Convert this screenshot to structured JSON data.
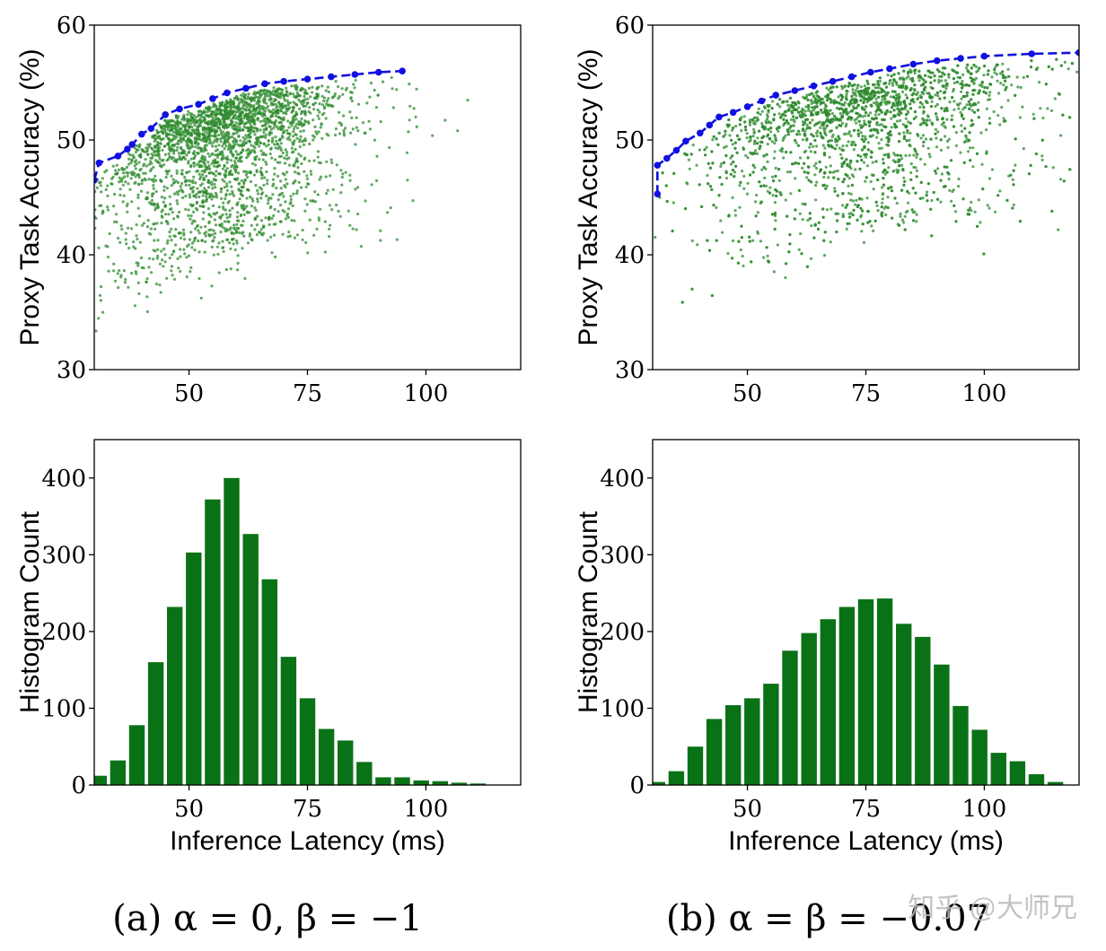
{
  "captions": {
    "a": "(a) α = 0, β = −1",
    "b": "(b) α = β = −0.07"
  },
  "watermark": "知乎 @大师兄",
  "colors": {
    "scatter": "#2e8b2e",
    "frontier": "#1010e0",
    "bars": "#0a7216",
    "axis": "#000000"
  },
  "chart_data": [
    {
      "panel": "a-scatter",
      "type": "scatter",
      "ylabel": "Proxy Task Accuracy (%)",
      "xlabel": "",
      "xlim": [
        30,
        120
      ],
      "ylim": [
        30,
        60
      ],
      "xticks": [
        "50",
        "75",
        "100"
      ],
      "yticks": [
        "30",
        "40",
        "50",
        "60"
      ],
      "pareto_frontier": {
        "style": "dashed line with markers",
        "x": [
          30,
          31,
          35,
          37,
          38,
          40,
          42,
          45,
          48,
          52,
          55,
          58,
          62,
          66,
          70,
          75,
          80,
          85,
          90,
          95
        ],
        "y": [
          46.5,
          48.0,
          48.6,
          49.2,
          49.6,
          50.5,
          51.0,
          52.2,
          52.7,
          53.1,
          53.6,
          54.1,
          54.5,
          54.9,
          55.1,
          55.3,
          55.5,
          55.7,
          55.9,
          56.0
        ]
      },
      "cloud": {
        "center_x": 57,
        "spread_x": 12,
        "min_x": 30,
        "max_x": 112,
        "frontier_slack": 0.4
      }
    },
    {
      "panel": "b-scatter",
      "type": "scatter",
      "ylabel": "Proxy Task Accuracy (%)",
      "xlabel": "",
      "xlim": [
        30,
        120
      ],
      "ylim": [
        30,
        60
      ],
      "xticks": [
        "50",
        "75",
        "100"
      ],
      "yticks": [
        "30",
        "40",
        "50",
        "60"
      ],
      "pareto_frontier": {
        "style": "dashed line with markers",
        "x": [
          31,
          31,
          33,
          35,
          37,
          40,
          42,
          44,
          47,
          50,
          53,
          56,
          60,
          64,
          68,
          72,
          76,
          80,
          85,
          90,
          95,
          100,
          110,
          120
        ],
        "y": [
          45.3,
          47.8,
          48.4,
          49.1,
          49.9,
          50.6,
          51.3,
          52.0,
          52.4,
          52.9,
          53.4,
          53.9,
          54.3,
          54.7,
          55.1,
          55.5,
          55.9,
          56.2,
          56.6,
          56.9,
          57.1,
          57.3,
          57.5,
          57.6
        ]
      },
      "cloud": {
        "center_x": 74,
        "spread_x": 17,
        "min_x": 30,
        "max_x": 120,
        "frontier_slack": 0.4
      }
    },
    {
      "panel": "a-histogram",
      "type": "bar",
      "ylabel": "Histogram Count",
      "xlabel": "Inference Latency (ms)",
      "xlim": [
        30,
        120
      ],
      "ylim": [
        0,
        450
      ],
      "xticks": [
        "50",
        "75",
        "100"
      ],
      "yticks": [
        "0",
        "100",
        "200",
        "300",
        "400"
      ],
      "bin_centers": [
        31,
        35,
        39,
        43,
        47,
        51,
        55,
        59,
        63,
        67,
        71,
        75,
        79,
        83,
        87,
        91,
        95,
        99,
        103,
        107,
        111
      ],
      "values": [
        12,
        32,
        78,
        160,
        232,
        303,
        372,
        400,
        327,
        268,
        167,
        113,
        73,
        58,
        30,
        10,
        10,
        6,
        5,
        3,
        2
      ]
    },
    {
      "panel": "b-histogram",
      "type": "bar",
      "ylabel": "Histogram Count",
      "xlabel": "Inference Latency (ms)",
      "xlim": [
        30,
        120
      ],
      "ylim": [
        0,
        450
      ],
      "xticks": [
        "50",
        "75",
        "100"
      ],
      "yticks": [
        "0",
        "100",
        "200",
        "300",
        "400"
      ],
      "bin_centers": [
        31,
        35,
        39,
        43,
        47,
        51,
        55,
        59,
        63,
        67,
        71,
        75,
        79,
        83,
        87,
        91,
        95,
        99,
        103,
        107,
        111,
        115
      ],
      "values": [
        4,
        18,
        50,
        86,
        104,
        113,
        132,
        175,
        198,
        216,
        232,
        242,
        243,
        210,
        193,
        157,
        103,
        72,
        42,
        31,
        14,
        4
      ]
    }
  ]
}
